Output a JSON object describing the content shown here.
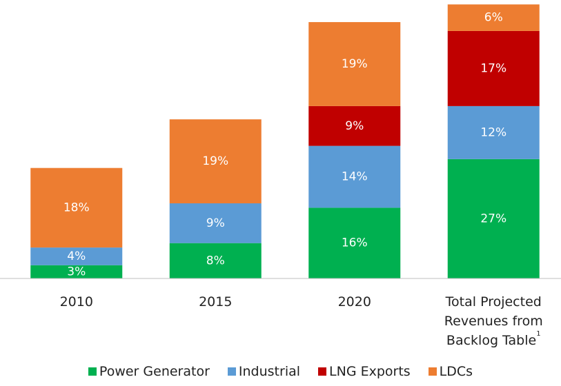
{
  "chart_data": {
    "type": "stacked_bar",
    "categories": [
      "2010",
      "2015",
      "2020",
      "Total Projected Revenues from Backlog Table"
    ],
    "category_superscripts": [
      null,
      null,
      null,
      "1"
    ],
    "series": [
      {
        "name": "Power Generator",
        "color": "#00b050",
        "values": [
          3,
          8,
          16,
          27
        ],
        "value_labels": [
          "3%",
          "8%",
          "16%",
          "27%"
        ]
      },
      {
        "name": "Industrial",
        "color": "#5b9bd5",
        "values": [
          4,
          9,
          14,
          12
        ],
        "value_labels": [
          "4%",
          "9%",
          "14%",
          "12%"
        ]
      },
      {
        "name": "LNG Exports",
        "color": "#c00000",
        "values": [
          null,
          null,
          9,
          17
        ],
        "value_labels": [
          null,
          null,
          "9%",
          "17%"
        ]
      },
      {
        "name": "LDCs",
        "color": "#ed7d31",
        "values": [
          18,
          19,
          19,
          6
        ],
        "value_labels": [
          "18%",
          "19%",
          "19%",
          "6%"
        ]
      }
    ],
    "ylim": [
      0,
      63
    ],
    "legend": "bottom"
  }
}
